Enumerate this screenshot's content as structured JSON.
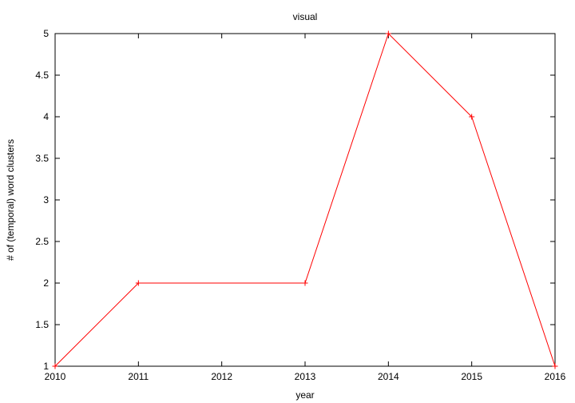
{
  "chart_data": {
    "type": "line",
    "title": "visual",
    "xlabel": "year",
    "ylabel": "# of (temporal) word clusters",
    "x": [
      2010,
      2011,
      2013,
      2014,
      2015,
      2016
    ],
    "series": [
      {
        "values": [
          1,
          2,
          2,
          5,
          4,
          1
        ]
      }
    ],
    "xlim": [
      2010,
      2016
    ],
    "ylim": [
      1,
      5
    ],
    "xticks": [
      2010,
      2011,
      2012,
      2013,
      2014,
      2015,
      2016
    ],
    "xtick_labels": [
      "2010",
      "2011",
      "2012",
      "2013",
      "2014",
      "2015",
      "2016"
    ],
    "yticks": [
      1,
      1.5,
      2,
      2.5,
      3,
      3.5,
      4,
      4.5,
      5
    ],
    "ytick_labels": [
      "1",
      "1.5",
      "2",
      "2.5",
      "3",
      "3.5",
      "4",
      "4.5",
      "5"
    ],
    "grid": false,
    "line_color": "#ff0000",
    "marker": "plus"
  }
}
